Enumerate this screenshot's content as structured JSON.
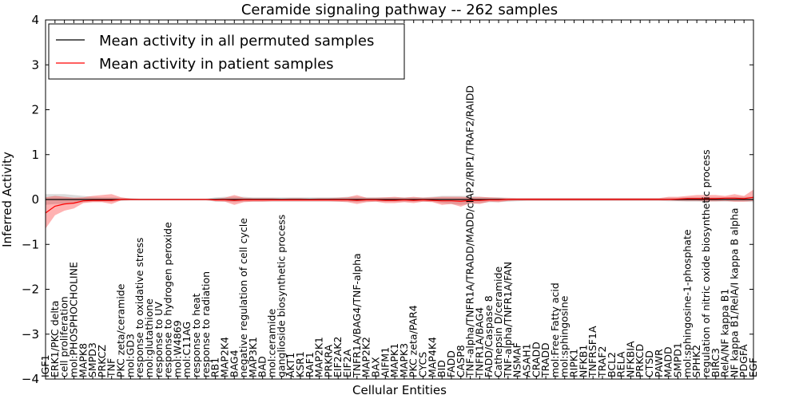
{
  "chart_data": {
    "type": "line",
    "title": "Ceramide signaling pathway -- 262 samples",
    "xlabel": "Cellular Entities",
    "ylabel": "Inferred Activity",
    "ylim": [
      -4,
      4
    ],
    "yticks": [
      -4,
      -3,
      -2,
      -1,
      0,
      1,
      2,
      3,
      4
    ],
    "legend_position": "top-left",
    "categories": [
      "IGF1",
      "ERK1/PKC delta",
      "cell proliferation",
      "mol:PHOSPHOCHOLINE",
      "MAPK8",
      "SMPD3",
      "PRKCZ",
      "TNF",
      "PKC zeta/ceramide",
      "mol:GD3",
      "response to oxidative stress",
      "mol:glutathione",
      "response to UV",
      "response to hydrogen peroxide",
      "mol:W4869",
      "mol:C11AG",
      "response to heat",
      "response to radiation",
      "RB1",
      "MAP2K4",
      "BAG4",
      "negative regulation of cell cycle",
      "MAP3K1",
      "BAD",
      "mol:ceramide",
      "ganglioside biosynthetic process",
      "AKT1",
      "KSR1",
      "RAF1",
      "MAP2K1",
      "PRKRA",
      "EIF2AK2",
      "EIF2A",
      "TNFR1A/BAG4/TNF-alpha",
      "MAP2K2",
      "BAX",
      "AIFM1",
      "MAPK1",
      "MAPK3",
      "PKC zeta/PAR4",
      "CYCS",
      "MAP4K4",
      "BID",
      "FADD",
      "CASP8",
      "TNF-alpha/TNFR1A/TRADD/MADD/cIAP2/RIP1/TRAF2/RAIDD",
      "TNFR1A/BAG4",
      "FADD/Caspase 8",
      "Cathepsin D/ceramide",
      "TNF-alpha/TNFR1A/FAN",
      "NSMAF",
      "ASAH1",
      "CRADD",
      "TRADD",
      "mol:Free Fatty acid",
      "mol:sphingosine",
      "RIPK1",
      "NFKB1",
      "TNFRSF1A",
      "TRAF2",
      "BCL2",
      "RELA",
      "NFKBIA",
      "PRKCD",
      "CTSD",
      "PAWR",
      "MADD",
      "SMPD1",
      "mol:sphingosine-1-phosphate",
      "SPHK2",
      "regulation of nitric oxide biosynthetic process",
      "BIRC3",
      "RelA/NF kappa B1",
      "NF kappa B1/RelA/I kappa B alpha",
      "PDGFA",
      "EGF"
    ],
    "series": [
      {
        "name": "Mean activity in all permuted samples",
        "color": "#000000",
        "values": [
          0,
          0,
          0,
          0,
          0,
          0,
          0,
          0,
          0,
          0,
          0,
          0,
          0,
          0,
          0,
          0,
          0,
          0,
          0,
          0,
          0,
          0,
          0,
          0,
          0,
          0,
          0,
          0,
          0,
          0,
          0,
          0,
          0,
          0,
          0,
          0,
          0,
          0,
          0,
          0,
          0,
          0,
          0,
          0,
          0,
          0,
          0,
          0,
          0,
          0,
          0,
          0,
          0,
          0,
          0,
          0,
          0,
          0,
          0,
          0,
          0,
          0,
          0,
          0,
          0,
          0,
          0,
          0,
          0,
          0,
          0,
          0,
          0,
          0,
          0,
          0
        ],
        "band_lower": [
          -0.12,
          -0.1,
          -0.1,
          -0.1,
          -0.06,
          -0.05,
          -0.05,
          -0.05,
          -0.03,
          -0.02,
          -0.02,
          -0.02,
          -0.02,
          -0.02,
          -0.02,
          -0.02,
          -0.02,
          -0.02,
          -0.05,
          -0.05,
          -0.06,
          -0.05,
          -0.05,
          -0.05,
          -0.05,
          -0.05,
          -0.05,
          -0.05,
          -0.05,
          -0.05,
          -0.05,
          -0.05,
          -0.05,
          -0.06,
          -0.05,
          -0.05,
          -0.05,
          -0.05,
          -0.05,
          -0.05,
          -0.05,
          -0.05,
          -0.08,
          -0.1,
          -0.12,
          -0.1,
          -0.08,
          -0.06,
          -0.06,
          -0.05,
          -0.04,
          -0.03,
          -0.03,
          -0.03,
          -0.03,
          -0.03,
          -0.03,
          -0.03,
          -0.03,
          -0.03,
          -0.03,
          -0.03,
          -0.03,
          -0.03,
          -0.03,
          -0.03,
          -0.04,
          -0.04,
          -0.05,
          -0.05,
          -0.05,
          -0.05,
          -0.05,
          -0.05,
          -0.05,
          -0.06
        ],
        "band_upper": [
          0.12,
          0.12,
          0.12,
          0.1,
          0.08,
          0.06,
          0.05,
          0.05,
          0.04,
          0.03,
          0.02,
          0.02,
          0.02,
          0.02,
          0.02,
          0.02,
          0.02,
          0.02,
          0.05,
          0.06,
          0.06,
          0.06,
          0.05,
          0.05,
          0.05,
          0.05,
          0.05,
          0.05,
          0.05,
          0.05,
          0.05,
          0.05,
          0.06,
          0.06,
          0.05,
          0.05,
          0.05,
          0.05,
          0.05,
          0.05,
          0.05,
          0.06,
          0.08,
          0.08,
          0.08,
          0.08,
          0.06,
          0.05,
          0.05,
          0.04,
          0.03,
          0.03,
          0.03,
          0.03,
          0.03,
          0.03,
          0.03,
          0.03,
          0.03,
          0.03,
          0.03,
          0.03,
          0.03,
          0.03,
          0.03,
          0.03,
          0.04,
          0.04,
          0.05,
          0.05,
          0.05,
          0.05,
          0.05,
          0.06,
          0.06,
          0.06
        ]
      },
      {
        "name": "Mean activity in patient samples",
        "color": "#ff0000",
        "values": [
          -0.3,
          -0.15,
          -0.1,
          -0.08,
          -0.03,
          -0.02,
          -0.02,
          -0.02,
          0,
          0,
          0,
          0,
          0,
          0,
          0,
          0,
          0,
          0,
          -0.01,
          -0.01,
          -0.02,
          -0.01,
          -0.01,
          -0.01,
          -0.01,
          -0.01,
          -0.01,
          -0.01,
          -0.01,
          -0.01,
          -0.01,
          -0.01,
          -0.01,
          -0.02,
          -0.01,
          -0.01,
          -0.02,
          -0.02,
          -0.01,
          -0.02,
          -0.01,
          -0.02,
          -0.03,
          -0.03,
          -0.04,
          -0.02,
          -0.02,
          -0.01,
          -0.01,
          0,
          0,
          0,
          0,
          0,
          0,
          0,
          0,
          0,
          0,
          0,
          0,
          0,
          0,
          0,
          0,
          0,
          0,
          0.01,
          0.02,
          0.02,
          0.02,
          0.02,
          0.03,
          0.03,
          0.02,
          0.05
        ],
        "band_lower": [
          -0.65,
          -0.35,
          -0.25,
          -0.2,
          -0.08,
          -0.06,
          -0.06,
          -0.1,
          -0.02,
          -0.01,
          0,
          0,
          0,
          0,
          0,
          0,
          0,
          0,
          -0.04,
          -0.05,
          -0.12,
          -0.06,
          -0.05,
          -0.05,
          -0.04,
          -0.04,
          -0.04,
          -0.04,
          -0.04,
          -0.04,
          -0.04,
          -0.05,
          -0.06,
          -0.1,
          -0.06,
          -0.05,
          -0.08,
          -0.08,
          -0.06,
          -0.08,
          -0.05,
          -0.06,
          -0.12,
          -0.1,
          -0.16,
          -0.08,
          -0.1,
          -0.05,
          -0.06,
          -0.03,
          -0.02,
          -0.02,
          -0.02,
          -0.02,
          -0.02,
          -0.02,
          -0.02,
          -0.02,
          -0.02,
          -0.02,
          -0.02,
          -0.02,
          -0.02,
          -0.02,
          -0.02,
          -0.02,
          -0.02,
          -0.03,
          -0.03,
          -0.03,
          -0.04,
          -0.04,
          -0.03,
          -0.05,
          -0.05,
          -0.03
        ],
        "band_upper": [
          0.05,
          0.08,
          0.06,
          0.04,
          0.05,
          0.08,
          0.1,
          0.12,
          0.05,
          0.02,
          0.01,
          0.01,
          0.01,
          0.01,
          0.01,
          0.01,
          0.01,
          0.01,
          0.02,
          0.04,
          0.1,
          0.04,
          0.03,
          0.03,
          0.03,
          0.02,
          0.03,
          0.03,
          0.02,
          0.03,
          0.03,
          0.04,
          0.05,
          0.1,
          0.04,
          0.04,
          0.05,
          0.06,
          0.04,
          0.06,
          0.04,
          0.05,
          0.06,
          0.06,
          0.06,
          0.05,
          0.06,
          0.05,
          0.04,
          0.03,
          0.03,
          0.03,
          0.03,
          0.03,
          0.03,
          0.03,
          0.03,
          0.03,
          0.03,
          0.03,
          0.03,
          0.03,
          0.03,
          0.03,
          0.03,
          0.03,
          0.06,
          0.06,
          0.08,
          0.1,
          0.1,
          0.1,
          0.08,
          0.12,
          0.08,
          0.22
        ]
      }
    ]
  }
}
